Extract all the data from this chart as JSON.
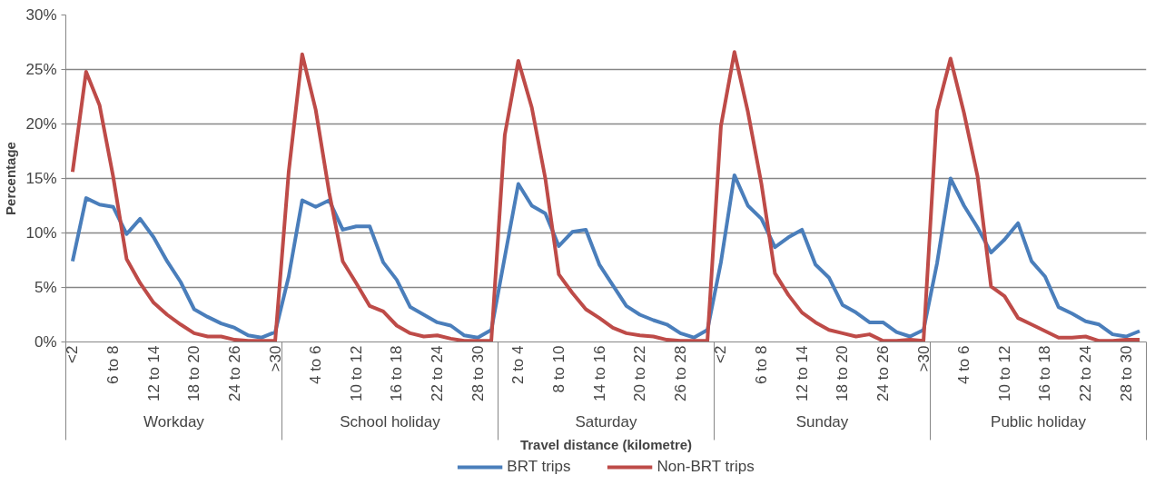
{
  "chart_data": {
    "type": "line",
    "xlabel": "Travel distance (kilometre)",
    "ylabel": "Percentage",
    "categories": [
      "<2",
      null,
      null,
      "6 to 8",
      null,
      null,
      "12 to 14",
      null,
      null,
      "18 to 20",
      null,
      null,
      "24 to 26",
      null,
      null,
      ">30",
      null,
      null,
      "4 to 6",
      null,
      null,
      "10 to 12",
      null,
      null,
      "16 to 18",
      null,
      null,
      "22 to 24",
      null,
      null,
      "28 to 30",
      null,
      null,
      "2 to 4",
      null,
      null,
      "8 to 10",
      null,
      null,
      "14 to 16",
      null,
      null,
      "20 to 22",
      null,
      null,
      "26 to 28",
      null,
      null,
      "<2",
      null,
      null,
      "6 to 8",
      null,
      null,
      "12 to 14",
      null,
      null,
      "18 to 20",
      null,
      null,
      "24 to 26",
      null,
      null,
      ">30",
      null,
      null,
      "4 to 6",
      null,
      null,
      "10 to 12",
      null,
      null,
      "16 to 18",
      null,
      null,
      "22 to 24",
      null,
      null,
      "28 to 30",
      null
    ],
    "annotations": [
      "Workday",
      "School holiday",
      "Saturday",
      "Sunday",
      "Public holiday"
    ],
    "series": [
      {
        "name": "BRT trips",
        "color": "#4a7ebb",
        "values": [
          7.4,
          13.2,
          12.6,
          12.4,
          9.9,
          11.3,
          9.6,
          7.4,
          5.5,
          3.0,
          2.3,
          1.7,
          1.3,
          0.6,
          0.4,
          0.9,
          6.0,
          13.0,
          12.4,
          13.0,
          10.3,
          10.6,
          10.6,
          7.3,
          5.7,
          3.2,
          2.5,
          1.8,
          1.5,
          0.6,
          0.4,
          1.1,
          7.8,
          14.5,
          12.5,
          11.8,
          8.8,
          10.1,
          10.3,
          7.1,
          5.2,
          3.3,
          2.5,
          2.0,
          1.6,
          0.8,
          0.4,
          1.1,
          7.3,
          15.3,
          12.5,
          11.3,
          8.7,
          9.6,
          10.3,
          7.1,
          5.9,
          3.4,
          2.7,
          1.8,
          1.8,
          0.9,
          0.5,
          1.1,
          7.2,
          15.0,
          12.5,
          10.5,
          8.2,
          9.4,
          10.9,
          7.4,
          6.0,
          3.2,
          2.6,
          1.9,
          1.6,
          0.7,
          0.5,
          1.0
        ]
      },
      {
        "name": "Non-BRT trips",
        "color": "#be4b48",
        "values": [
          15.6,
          24.8,
          21.7,
          15.2,
          7.6,
          5.4,
          3.6,
          2.5,
          1.6,
          0.8,
          0.5,
          0.5,
          0.2,
          0.1,
          0.1,
          0.1,
          15.6,
          26.4,
          21.3,
          13.7,
          7.4,
          5.4,
          3.3,
          2.8,
          1.5,
          0.8,
          0.5,
          0.6,
          0.3,
          0.1,
          0.1,
          0.1,
          19.0,
          25.8,
          21.5,
          15.0,
          6.2,
          4.5,
          3.0,
          2.2,
          1.3,
          0.8,
          0.6,
          0.5,
          0.2,
          0.1,
          0.1,
          0.1,
          19.8,
          26.6,
          21.1,
          14.5,
          6.3,
          4.3,
          2.7,
          1.8,
          1.1,
          0.8,
          0.5,
          0.7,
          0.1,
          0.1,
          0.2,
          0.1,
          21.2,
          26.0,
          21.0,
          15.2,
          5.1,
          4.2,
          2.2,
          1.6,
          1.0,
          0.4,
          0.4,
          0.5,
          0.1,
          0.1,
          0.2,
          0.2
        ]
      }
    ],
    "ylim": [
      0,
      30
    ],
    "yticks": [
      {
        "value": 0,
        "label": "0%"
      },
      {
        "value": 5,
        "label": "5%"
      },
      {
        "value": 10,
        "label": "10%"
      },
      {
        "value": 15,
        "label": "15%"
      },
      {
        "value": 20,
        "label": "20%"
      },
      {
        "value": 25,
        "label": "25%"
      },
      {
        "value": 30,
        "label": "30%"
      }
    ],
    "grid": "y",
    "legend": "bottom"
  }
}
